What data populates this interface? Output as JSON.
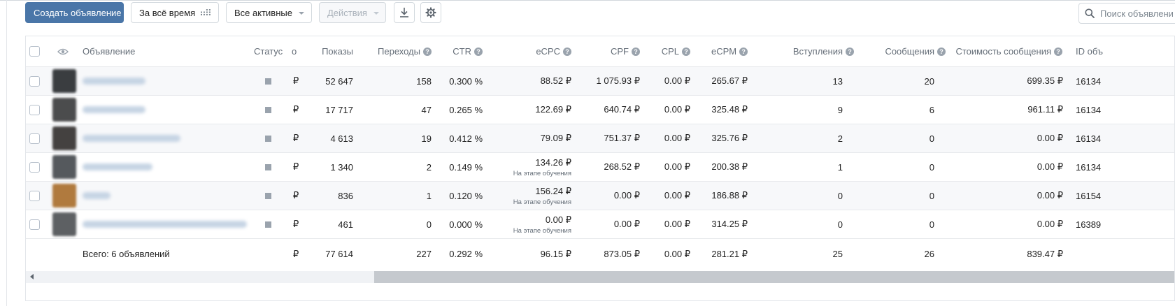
{
  "toolbar": {
    "create_label": "Создать объявление",
    "period_label": "За всё время",
    "filter_label": "Все активные",
    "actions_label": "Действия",
    "search_placeholder": "Поиск объявлени"
  },
  "table": {
    "headers": {
      "ad": "Объявление",
      "status": "Статус",
      "currency": "о",
      "impressions": "Показы",
      "clicks": "Переходы",
      "ctr": "CTR",
      "ecpc": "eCPC",
      "cpf": "CPF",
      "cpl": "CPL",
      "ecpm": "eCPM",
      "joins": "Вступления",
      "messages": "Сообщения",
      "msg_cost": "Стоимость сообщения",
      "id": "ID объ"
    },
    "rows": [
      {
        "currency": "₽",
        "impressions": "52 647",
        "clicks": "158",
        "ctr": "0.300 %",
        "ecpc": "88.52 ₽",
        "ecpc_note": "",
        "cpf": "1 075.93 ₽",
        "cpl": "0.00 ₽",
        "ecpm": "265.67 ₽",
        "joins": "13",
        "messages": "20",
        "msg_cost": "699.35 ₽",
        "id": "16134"
      },
      {
        "currency": "₽",
        "impressions": "17 717",
        "clicks": "47",
        "ctr": "0.265 %",
        "ecpc": "122.69 ₽",
        "ecpc_note": "",
        "cpf": "640.74 ₽",
        "cpl": "0.00 ₽",
        "ecpm": "325.48 ₽",
        "joins": "9",
        "messages": "6",
        "msg_cost": "961.11 ₽",
        "id": "16134"
      },
      {
        "currency": "₽",
        "impressions": "4 613",
        "clicks": "19",
        "ctr": "0.412 %",
        "ecpc": "79.09 ₽",
        "ecpc_note": "",
        "cpf": "751.37 ₽",
        "cpl": "0.00 ₽",
        "ecpm": "325.76 ₽",
        "joins": "2",
        "messages": "0",
        "msg_cost": "0.00 ₽",
        "id": "16134"
      },
      {
        "currency": "₽",
        "impressions": "1 340",
        "clicks": "2",
        "ctr": "0.149 %",
        "ecpc": "134.26 ₽",
        "ecpc_note": "На этапе обучения",
        "cpf": "268.52 ₽",
        "cpl": "0.00 ₽",
        "ecpm": "200.38 ₽",
        "joins": "1",
        "messages": "0",
        "msg_cost": "0.00 ₽",
        "id": "16134"
      },
      {
        "currency": "₽",
        "impressions": "836",
        "clicks": "1",
        "ctr": "0.120 %",
        "ecpc": "156.24 ₽",
        "ecpc_note": "На этапе обучения",
        "cpf": "0.00 ₽",
        "cpl": "0.00 ₽",
        "ecpm": "186.88 ₽",
        "joins": "0",
        "messages": "0",
        "msg_cost": "0.00 ₽",
        "id": "16154"
      },
      {
        "currency": "₽",
        "impressions": "461",
        "clicks": "0",
        "ctr": "0.000 %",
        "ecpc": "0.00 ₽",
        "ecpc_note": "На этапе обучения",
        "cpf": "0.00 ₽",
        "cpl": "0.00 ₽",
        "ecpm": "314.25 ₽",
        "joins": "0",
        "messages": "0",
        "msg_cost": "0.00 ₽",
        "id": "16389"
      }
    ],
    "total": {
      "label": "Всего: 6 объявлений",
      "currency": "₽",
      "impressions": "77 614",
      "clicks": "227",
      "ctr": "0.292 %",
      "ecpc": "96.15 ₽",
      "cpf": "873.05 ₽",
      "cpl": "0.00 ₽",
      "ecpm": "281.21 ₽",
      "joins": "25",
      "messages": "26",
      "msg_cost": "839.47 ₽"
    }
  },
  "colors": {
    "primary": "#4a76a8",
    "status_gray": "#9aa3ad",
    "thumb_colors": [
      "#3a3d40",
      "#4b4c4d",
      "#444140",
      "#55595d",
      "#b07a3e",
      "#5d6063"
    ]
  },
  "icons": [
    "grid-icon",
    "download-icon",
    "gear-icon",
    "search-icon",
    "eye-icon",
    "question-icon",
    "scroll-left-icon"
  ]
}
